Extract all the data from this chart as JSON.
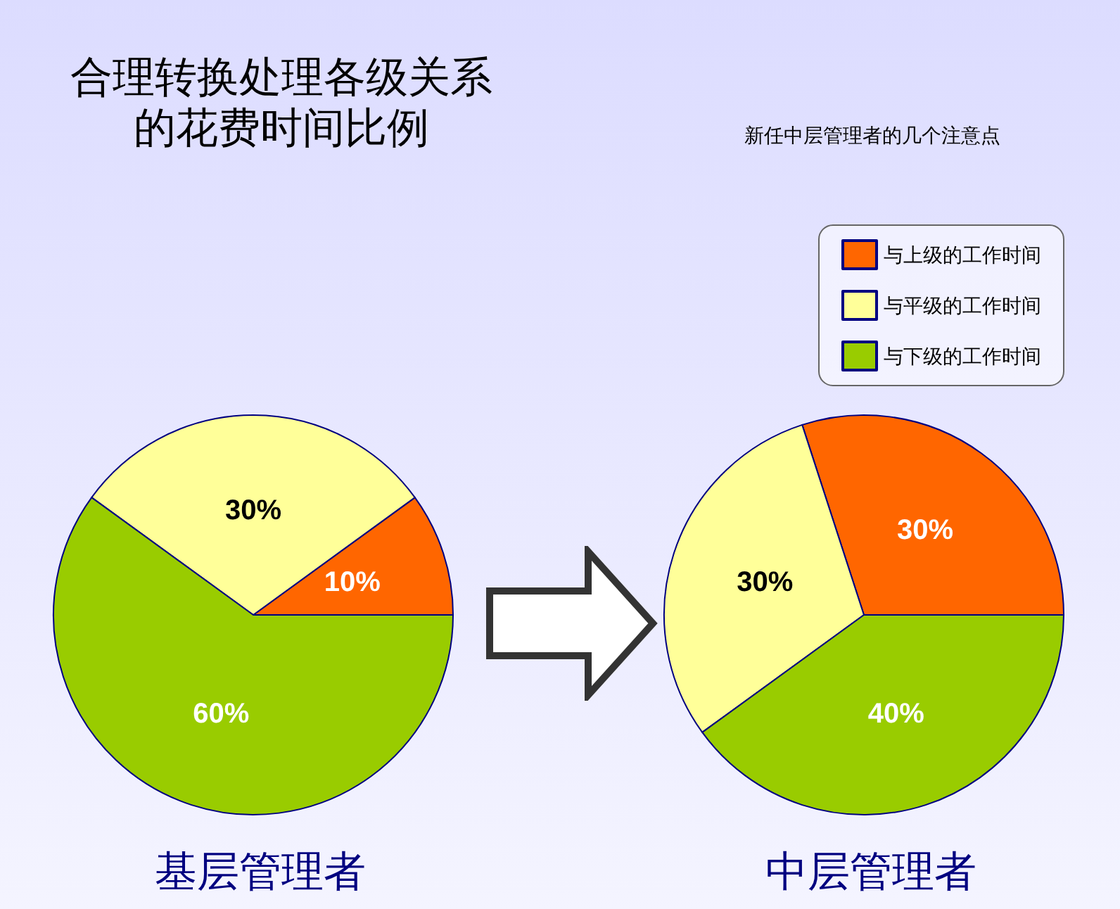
{
  "chart_data": [
    {
      "type": "other",
      "title": "合理转换处理各级关系的花费时间比例",
      "annotations": [
        "新任中层管理者的几个注意点"
      ]
    },
    {
      "type": "pie",
      "title": "基层管理者",
      "categories": [
        null,
        null,
        null
      ],
      "values": [
        10,
        30,
        60
      ],
      "value_labels": [
        "10%",
        "30%",
        "60%"
      ],
      "colors": [
        "#ff6600",
        "#ffff99",
        "#99cc00"
      ],
      "legend": false
    },
    {
      "type": "pie",
      "title": "中层管理者",
      "categories": [
        "与上级的工作时间",
        "与平级的工作时间",
        "与下级的工作时间"
      ],
      "values": [
        30,
        30,
        40
      ],
      "value_labels": [
        "30%",
        "30%",
        "40%"
      ],
      "colors": [
        "#ff6600",
        "#ffff99",
        "#99cc00"
      ],
      "legend": "top right"
    }
  ]
}
